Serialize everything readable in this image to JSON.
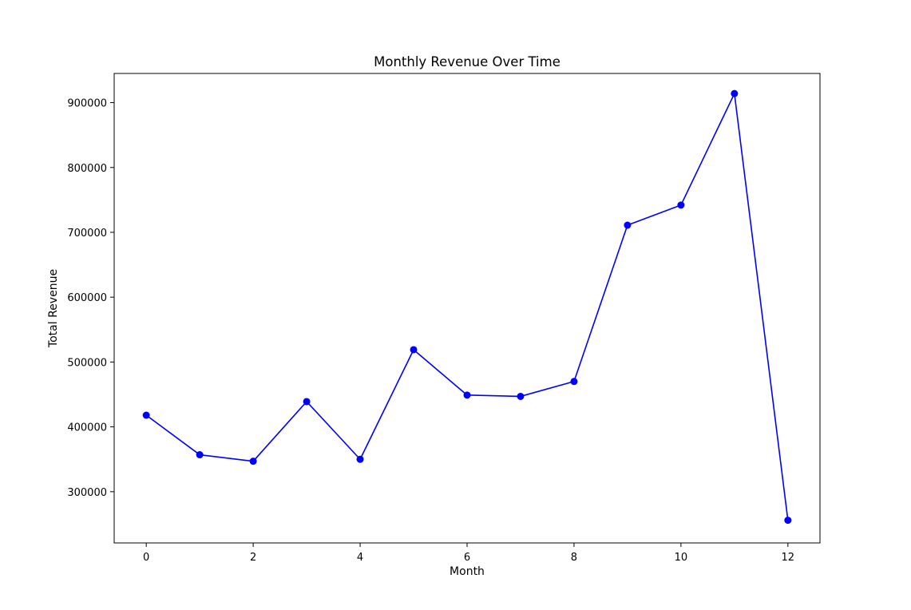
{
  "chart_data": {
    "type": "line",
    "title": "Monthly Revenue Over Time",
    "xlabel": "Month",
    "ylabel": "Total Revenue",
    "series": [
      {
        "x": [
          0,
          1,
          2,
          3,
          4,
          5,
          6,
          7,
          8,
          9,
          10,
          11,
          12
        ],
        "values": [
          418000,
          357000,
          347000,
          439000,
          350000,
          519000,
          449000,
          447000,
          470000,
          711000,
          742000,
          914000,
          256000
        ],
        "color": "#0000ff",
        "marker": "circle"
      }
    ],
    "xlim": [
      -0.6,
      12.6
    ],
    "ylim": [
      221000,
      945000
    ],
    "xticks": [
      0,
      2,
      4,
      6,
      8,
      10,
      12
    ],
    "yticks": [
      300000,
      400000,
      500000,
      600000,
      700000,
      800000,
      900000
    ],
    "grid": false,
    "legend": "none"
  }
}
